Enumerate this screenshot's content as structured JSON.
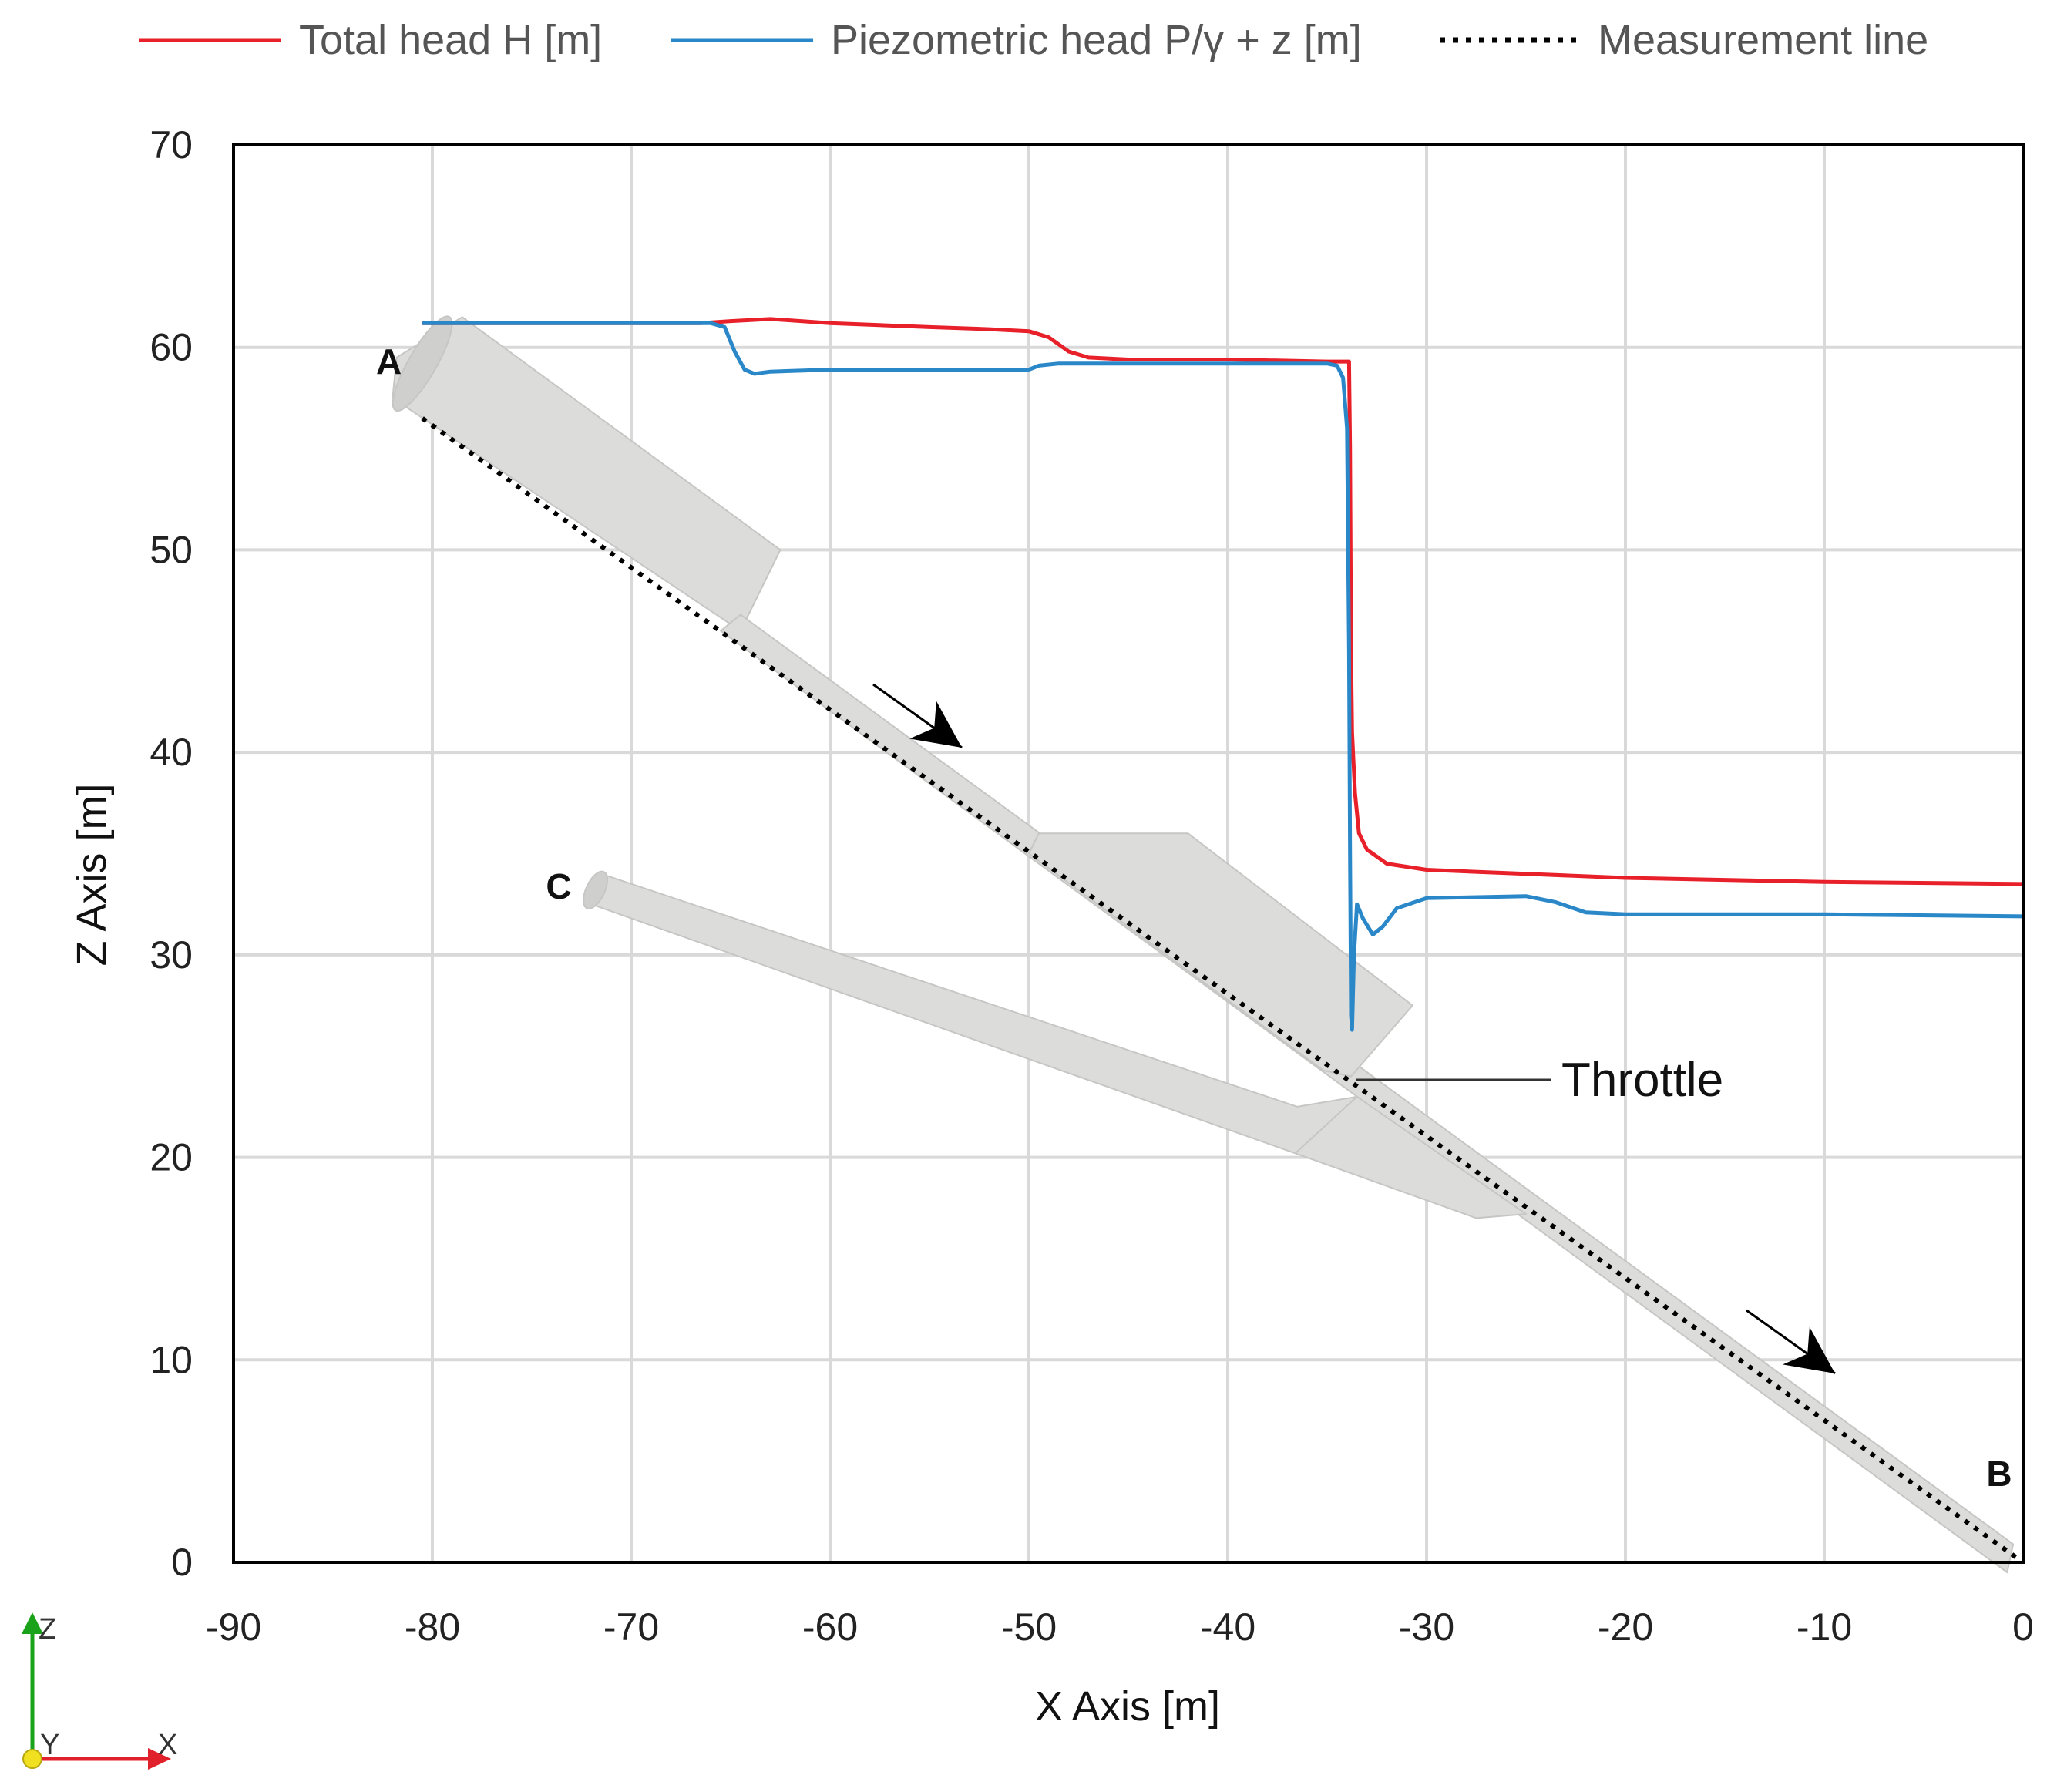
{
  "chart_data": {
    "type": "line",
    "title": "",
    "xlabel": "X Axis [m]",
    "ylabel": "Z Axis [m]",
    "xlim": [
      -90,
      0
    ],
    "ylim": [
      0,
      70
    ],
    "xticks": [
      -90,
      -80,
      -70,
      -60,
      -50,
      -40,
      -30,
      -20,
      -10,
      0
    ],
    "yticks": [
      0,
      10,
      20,
      30,
      40,
      50,
      60,
      70
    ],
    "grid": true,
    "legend_position": "top",
    "legend": [
      {
        "label": "Total head H [m]",
        "color": "#e8202a",
        "style": "solid"
      },
      {
        "label": "Piezometric head P/γ + z [m]",
        "color": "#2a87c8",
        "style": "solid"
      },
      {
        "label": "Measurement line",
        "color": "#000000",
        "style": "dotted"
      }
    ],
    "series": [
      {
        "name": "Total head H [m]",
        "color": "#e8202a",
        "points": [
          [
            -80.5,
            61.2
          ],
          [
            -66.5,
            61.2
          ],
          [
            -65,
            61.3
          ],
          [
            -63,
            61.4
          ],
          [
            -60,
            61.2
          ],
          [
            -55,
            61.0
          ],
          [
            -52,
            60.9
          ],
          [
            -50,
            60.8
          ],
          [
            -49,
            60.5
          ],
          [
            -48,
            59.8
          ],
          [
            -47,
            59.5
          ],
          [
            -45,
            59.4
          ],
          [
            -40,
            59.4
          ],
          [
            -35,
            59.3
          ],
          [
            -33.9,
            59.3
          ],
          [
            -33.85,
            55
          ],
          [
            -33.8,
            45
          ],
          [
            -33.75,
            41
          ],
          [
            -33.6,
            38
          ],
          [
            -33.4,
            36
          ],
          [
            -33,
            35.2
          ],
          [
            -32,
            34.5
          ],
          [
            -30,
            34.2
          ],
          [
            -25,
            34.0
          ],
          [
            -20,
            33.8
          ],
          [
            -10,
            33.6
          ],
          [
            0,
            33.5
          ]
        ]
      },
      {
        "name": "Piezometric head P/γ + z [m]",
        "color": "#2a87c8",
        "points": [
          [
            -80.5,
            61.2
          ],
          [
            -66,
            61.2
          ],
          [
            -65.3,
            61.0
          ],
          [
            -64.8,
            59.8
          ],
          [
            -64.3,
            58.9
          ],
          [
            -63.8,
            58.7
          ],
          [
            -63,
            58.8
          ],
          [
            -60,
            58.9
          ],
          [
            -55,
            58.9
          ],
          [
            -50,
            58.9
          ],
          [
            -49.5,
            59.1
          ],
          [
            -48.5,
            59.2
          ],
          [
            -45,
            59.2
          ],
          [
            -40,
            59.2
          ],
          [
            -35,
            59.2
          ],
          [
            -34.5,
            59.1
          ],
          [
            -34.2,
            58.5
          ],
          [
            -34.0,
            56
          ],
          [
            -33.9,
            45
          ],
          [
            -33.85,
            35
          ],
          [
            -33.8,
            27
          ],
          [
            -33.75,
            26.3
          ],
          [
            -33.65,
            30
          ],
          [
            -33.5,
            32.5
          ],
          [
            -33.2,
            31.8
          ],
          [
            -32.7,
            31.0
          ],
          [
            -32.2,
            31.4
          ],
          [
            -31.5,
            32.3
          ],
          [
            -30,
            32.8
          ],
          [
            -25,
            32.9
          ],
          [
            -23.5,
            32.6
          ],
          [
            -22,
            32.1
          ],
          [
            -20,
            32.0
          ],
          [
            -10,
            32.0
          ],
          [
            0,
            31.9
          ]
        ]
      },
      {
        "name": "Measurement line",
        "color": "#000000",
        "points": [
          [
            -80.5,
            56.5
          ],
          [
            0,
            0
          ]
        ]
      }
    ],
    "annotations": [
      {
        "text": "A",
        "x": -83,
        "y": 59.5
      },
      {
        "text": "B",
        "x": -1.2,
        "y": 4.5
      },
      {
        "text": "C",
        "x": -74,
        "y": 33
      },
      {
        "text": "Throttle",
        "x": -23,
        "y": 24
      }
    ]
  },
  "triad": {
    "z": "Z",
    "y": "Y",
    "x": "X"
  },
  "colors": {
    "grid": "#d9d9d9",
    "pipe_fill": "#dcdcda",
    "pipe_stroke": "#c6c6c4",
    "axis": "#000000"
  }
}
